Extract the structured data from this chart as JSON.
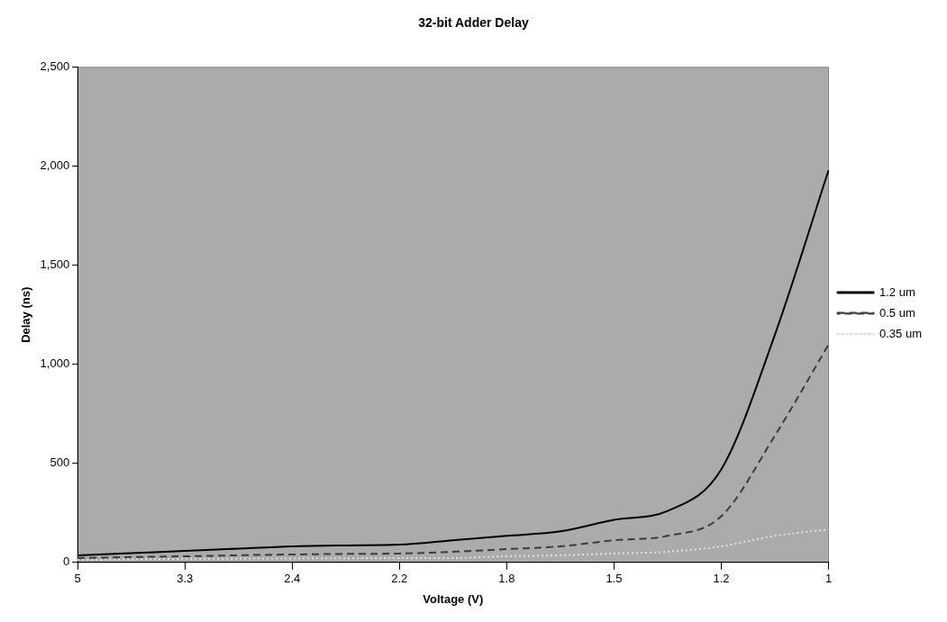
{
  "chart_data": {
    "type": "line",
    "title": "32-bit Adder Delay",
    "xlabel": "Voltage (V)",
    "ylabel": "Delay (ns)",
    "categories": [
      "5",
      null,
      "3.3",
      null,
      "2.4",
      null,
      "2.2",
      null,
      "1.8",
      null,
      "1.5",
      null,
      "1.2",
      null,
      "1"
    ],
    "series": [
      {
        "name": "1.2 um",
        "color": "#000000",
        "line_style": "solid",
        "values": [
          36,
          47,
          58,
          70,
          81,
          86,
          90,
          112,
          134,
          157,
          215,
          260,
          470,
          1150,
          1980
        ]
      },
      {
        "name": "0.5 um",
        "color": "#3c3c3c",
        "line_style": "dashed",
        "values": [
          22,
          27,
          31,
          36,
          40,
          43,
          45,
          54,
          67,
          81,
          112,
          134,
          233,
          640,
          1100
        ]
      },
      {
        "name": "0.35 um",
        "color": "#e0e0e0",
        "line_style": "dotted",
        "values": [
          13,
          16,
          18,
          19,
          20,
          21,
          22,
          22,
          31,
          36,
          45,
          54,
          81,
          134,
          166
        ]
      }
    ],
    "ylim": [
      0,
      2500
    ],
    "yticks": [
      0,
      500,
      {
        "value": 1000,
        "label": "1,000"
      },
      {
        "value": 1500,
        "label": "1,500"
      },
      {
        "value": 2000,
        "label": "2,000"
      },
      {
        "value": 2500,
        "label": "2,500"
      }
    ],
    "grid": false,
    "legend": "right",
    "marker": "none"
  }
}
